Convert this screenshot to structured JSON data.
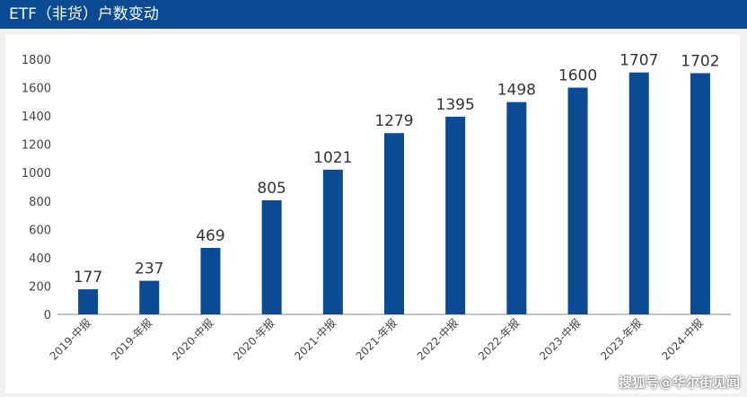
{
  "header": {
    "title": "ETF（非货）户数变动"
  },
  "watermark": "搜狐号@华尔街见闻",
  "colors": {
    "header_bg": "#0b4b93",
    "bar": "#0b4b93",
    "axis_text": "#444444",
    "label_text": "#333333"
  },
  "chart_data": {
    "type": "bar",
    "title": "",
    "xlabel": "",
    "ylabel": "",
    "ylim": [
      0,
      1800
    ],
    "yticks": [
      0,
      200,
      400,
      600,
      800,
      1000,
      1200,
      1400,
      1600,
      1800
    ],
    "grid": false,
    "categories": [
      "2019-中报",
      "2019-年报",
      "2020-中报",
      "2020-年报",
      "2021-中报",
      "2021-年报",
      "2022-中报",
      "2022-年报",
      "2023-中报",
      "2023-年报",
      "2024-中报"
    ],
    "values": [
      177,
      237,
      469,
      805,
      1021,
      1279,
      1395,
      1498,
      1600,
      1707,
      1702
    ]
  }
}
